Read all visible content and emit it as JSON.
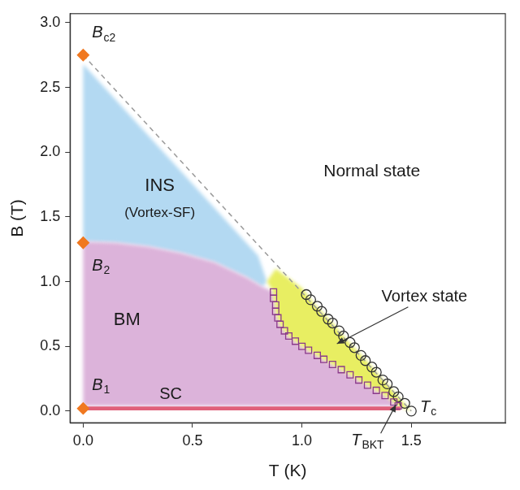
{
  "chart_data": {
    "type": "scatter",
    "x_label": "T (K)",
    "y_label": "B (T)",
    "xlim": [
      -0.06,
      1.93
    ],
    "ylim": [
      -0.09,
      3.07
    ],
    "xticks": [
      {
        "value": 0,
        "label": "0.0"
      },
      {
        "value": 0.5,
        "label": "0.5"
      },
      {
        "value": 1,
        "label": "1.0"
      },
      {
        "value": 1.5,
        "label": "1.5"
      }
    ],
    "yticks": [
      {
        "value": 0,
        "label": "0.0"
      },
      {
        "value": 0.5,
        "label": "0.5"
      },
      {
        "value": 1,
        "label": "1.0"
      },
      {
        "value": 1.5,
        "label": "1.5"
      },
      {
        "value": 2,
        "label": "2.0"
      },
      {
        "value": 2.5,
        "label": "2.5"
      },
      {
        "value": 3,
        "label": "3.0"
      }
    ],
    "grid": false,
    "regions": [
      {
        "name": "INS",
        "color": "#b3d9f2",
        "x": [
          0,
          0.8,
          0.84,
          0.82,
          0.75,
          0.6,
          0.45,
          0.3,
          0.15,
          0
        ],
        "y": [
          2.68,
          1.2,
          1.0,
          0.96,
          1.03,
          1.15,
          1.22,
          1.27,
          1.3,
          1.31
        ]
      },
      {
        "name": "BM",
        "color": "#dcb3da",
        "x": [
          0,
          0.15,
          0.3,
          0.45,
          0.6,
          0.75,
          0.82,
          0.87,
          0.87,
          0.88,
          0.88,
          0.89,
          0.9,
          0.92,
          0.94,
          0.97,
          1.0,
          1.03,
          1.07,
          1.1,
          1.14,
          1.18,
          1.22,
          1.26,
          1.3,
          1.34,
          1.38,
          1.42,
          1.44,
          0
        ],
        "y": [
          1.31,
          1.3,
          1.27,
          1.22,
          1.15,
          1.03,
          0.96,
          0.92,
          0.87,
          0.82,
          0.77,
          0.72,
          0.67,
          0.62,
          0.58,
          0.54,
          0.5,
          0.47,
          0.43,
          0.4,
          0.36,
          0.32,
          0.28,
          0.24,
          0.2,
          0.16,
          0.12,
          0.07,
          0.04,
          0.04
        ]
      },
      {
        "name": "Vortex state",
        "color": "#e8ee62",
        "x": [
          0.84,
          0.88,
          1.0,
          1.05,
          1.1,
          1.15,
          1.2,
          1.25,
          1.3,
          1.35,
          1.4,
          1.45,
          1.5,
          1.44,
          1.42,
          1.38,
          1.34,
          1.3,
          1.26,
          1.22,
          1.18,
          1.14,
          1.1,
          1.07,
          1.03,
          1.0,
          0.97,
          0.94,
          0.92,
          0.9,
          0.89,
          0.88,
          0.88,
          0.87,
          0.87
        ],
        "y": [
          1.0,
          1.1,
          0.95,
          0.84,
          0.75,
          0.66,
          0.56,
          0.47,
          0.38,
          0.28,
          0.19,
          0.09,
          0.0,
          0.04,
          0.07,
          0.12,
          0.16,
          0.2,
          0.24,
          0.28,
          0.32,
          0.36,
          0.4,
          0.43,
          0.47,
          0.5,
          0.54,
          0.58,
          0.62,
          0.67,
          0.72,
          0.77,
          0.82,
          0.87,
          0.92
        ]
      },
      {
        "name": "SC",
        "color": "#e0607a",
        "x": [
          0,
          1.45,
          1.45,
          0
        ],
        "y": [
          0.005,
          0.005,
          0.035,
          0.035
        ]
      }
    ],
    "series": [
      {
        "type": "line",
        "line_style": "dashed",
        "color": "#9a9a9a",
        "x": [
          0,
          1.5
        ],
        "values": [
          2.75,
          0
        ]
      },
      {
        "type": "scatter",
        "marker": "square-open",
        "color": "#8b3a8b",
        "x": [
          0.87,
          0.87,
          0.88,
          0.88,
          0.89,
          0.9,
          0.92,
          0.94,
          0.97,
          1.0,
          1.03,
          1.07,
          1.1,
          1.14,
          1.18,
          1.22,
          1.26,
          1.3,
          1.34,
          1.38,
          1.42,
          1.44
        ],
        "values": [
          0.92,
          0.87,
          0.82,
          0.77,
          0.72,
          0.67,
          0.62,
          0.58,
          0.54,
          0.5,
          0.47,
          0.43,
          0.4,
          0.36,
          0.32,
          0.28,
          0.24,
          0.2,
          0.16,
          0.12,
          0.07,
          0.04
        ]
      },
      {
        "type": "scatter",
        "marker": "circle-open",
        "color": "#333333",
        "x": [
          1.02,
          1.04,
          1.07,
          1.09,
          1.12,
          1.14,
          1.17,
          1.19,
          1.22,
          1.24,
          1.27,
          1.29,
          1.32,
          1.34,
          1.37,
          1.39,
          1.42,
          1.44,
          1.47,
          1.5
        ],
        "values": [
          0.9,
          0.86,
          0.81,
          0.77,
          0.71,
          0.68,
          0.62,
          0.58,
          0.53,
          0.49,
          0.43,
          0.39,
          0.34,
          0.3,
          0.24,
          0.21,
          0.15,
          0.11,
          0.06,
          0.0
        ]
      },
      {
        "type": "scatter",
        "marker": "diamond",
        "color": "#f07820",
        "x": [
          0,
          0,
          0
        ],
        "values": [
          2.75,
          1.3,
          0.02
        ]
      }
    ],
    "annotations": [
      {
        "text": "Normal state"
      },
      {
        "text": "INS"
      },
      {
        "text": "(Vortex-SF)"
      },
      {
        "text": "BM"
      },
      {
        "text": "SC"
      },
      {
        "text": "Vortex state"
      },
      {
        "text": "B",
        "sub": "c2"
      },
      {
        "text": "B",
        "sub": "2"
      },
      {
        "text": "B",
        "sub": "1"
      },
      {
        "text": "T",
        "sub": "c"
      },
      {
        "text": "T",
        "sub": "BKT"
      }
    ]
  }
}
